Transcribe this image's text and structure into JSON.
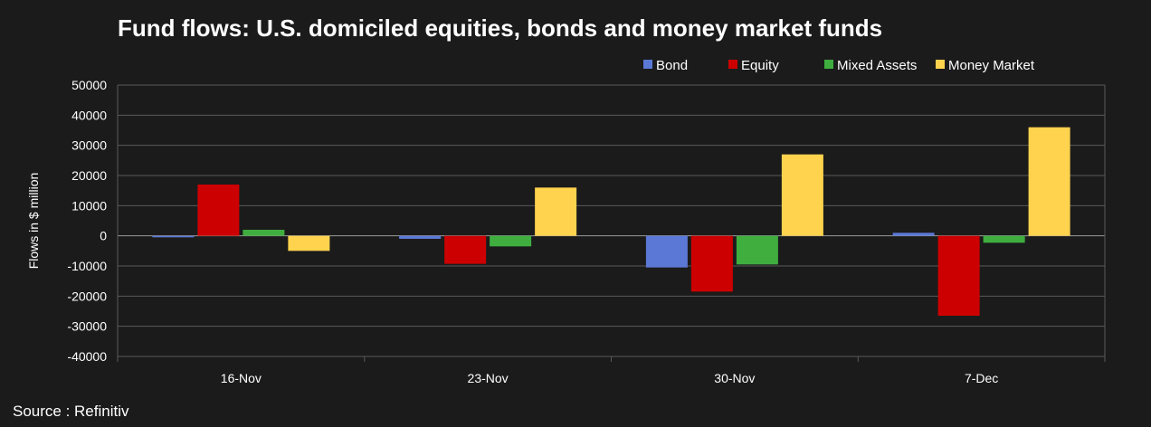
{
  "source": "Source : Refinitiv",
  "chart_data": {
    "type": "bar",
    "title": "Fund flows: U.S. domiciled equities, bonds and money market funds",
    "ylabel": "Flows in $ million",
    "xlabel": "",
    "ylim": [
      -40000,
      50000
    ],
    "yticks": [
      50000,
      40000,
      30000,
      20000,
      10000,
      0,
      -10000,
      -20000,
      -30000,
      -40000
    ],
    "grid": true,
    "legend_position": "top-right",
    "categories": [
      "16-Nov",
      "23-Nov",
      "30-Nov",
      "7-Dec"
    ],
    "series": [
      {
        "name": "Bond",
        "color": "#5b78d6",
        "values": [
          -500,
          -1000,
          -10500,
          1000
        ]
      },
      {
        "name": "Equity",
        "color": "#cc0000",
        "values": [
          17000,
          -9300,
          -18500,
          -26500
        ]
      },
      {
        "name": "Mixed Assets",
        "color": "#3fae3f",
        "values": [
          2000,
          -3500,
          -9500,
          -2300
        ]
      },
      {
        "name": "Money Market",
        "color": "#ffd34d",
        "values": [
          -5000,
          16000,
          27000,
          36000
        ]
      }
    ]
  }
}
